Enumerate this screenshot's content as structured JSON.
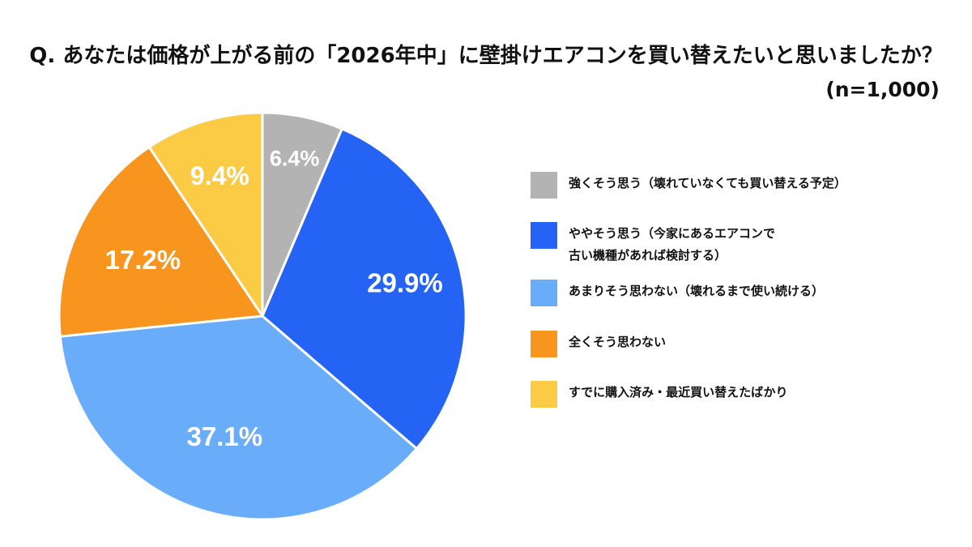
{
  "title": "Q. あなたは価格が上がる前の「2026年中」に壁掛けエアコンを買い替えたいと思いましたか？",
  "sample_size": "(n=1,000)",
  "chart_data": {
    "type": "pie",
    "title": "Q. あなたは価格が上がる前の「2026年中」に壁掛けエアコンを買い替えたいと思いましたか？",
    "categories": [
      "強くそう思う（壊れていなくても買い替える予定）",
      "ややそう思う（今家にあるエアコンで\n古い機種があれば検討する）",
      "あまりそう思わない（壊れるまで使い続ける）",
      "全くそう思わない",
      "すでに購入済み・最近買い替えたばかり"
    ],
    "values": [
      6.4,
      29.9,
      37.1,
      17.2,
      9.4
    ],
    "labels": [
      "6.4%",
      "29.9%",
      "37.1%",
      "17.2%",
      "9.4%"
    ],
    "colors": [
      "#b3b3b3",
      "#2563f5",
      "#69acfa",
      "#f7951e",
      "#fccb45"
    ],
    "label_color": "#ffffff",
    "legend": "right"
  }
}
